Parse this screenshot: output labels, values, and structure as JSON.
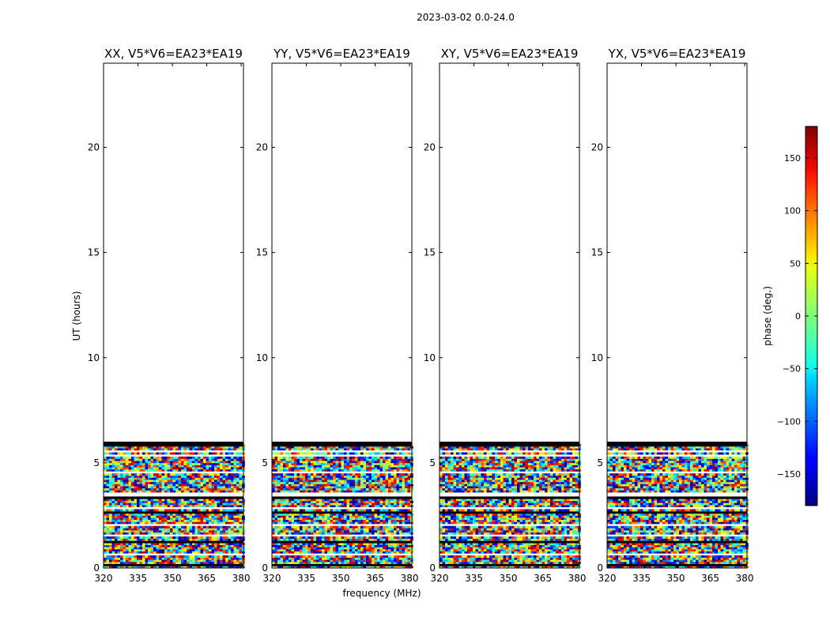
{
  "figure_title": "2023-03-02 0.0-24.0",
  "chart_data": {
    "type": "heatmap",
    "suptitle": "2023-03-02 0.0-24.0",
    "xlabel": "frequency (MHz)",
    "ylabel": "UT (hours)",
    "xlim": [
      320,
      381
    ],
    "ylim": [
      0,
      24
    ],
    "xticks": [
      320,
      335,
      350,
      365,
      380
    ],
    "yticks": [
      0,
      5,
      10,
      15,
      20
    ],
    "data_extent_hours": [
      0,
      6
    ],
    "panels": [
      {
        "title": "XX, V5*V6=EA23*EA19",
        "polarization": "XX"
      },
      {
        "title": "YY, V5*V6=EA23*EA19",
        "polarization": "YY"
      },
      {
        "title": "XY, V5*V6=EA23*EA19",
        "polarization": "XY"
      },
      {
        "title": "YX, V5*V6=EA23*EA19",
        "polarization": "YX"
      }
    ],
    "colorbar": {
      "label": "phase (deg.)",
      "min": -180,
      "max": 180,
      "ticks": [
        150,
        100,
        50,
        0,
        -50,
        -100,
        -150
      ],
      "colormap": "jet"
    },
    "gap_rows_hours": [
      0.55,
      0.65,
      1.5,
      1.55,
      2.05,
      2.8,
      3.45,
      4.5,
      5.3,
      5.55
    ],
    "flagged_rows_hours": [
      0.08,
      1.25,
      2.65,
      3.35,
      4.55,
      5.9
    ]
  }
}
